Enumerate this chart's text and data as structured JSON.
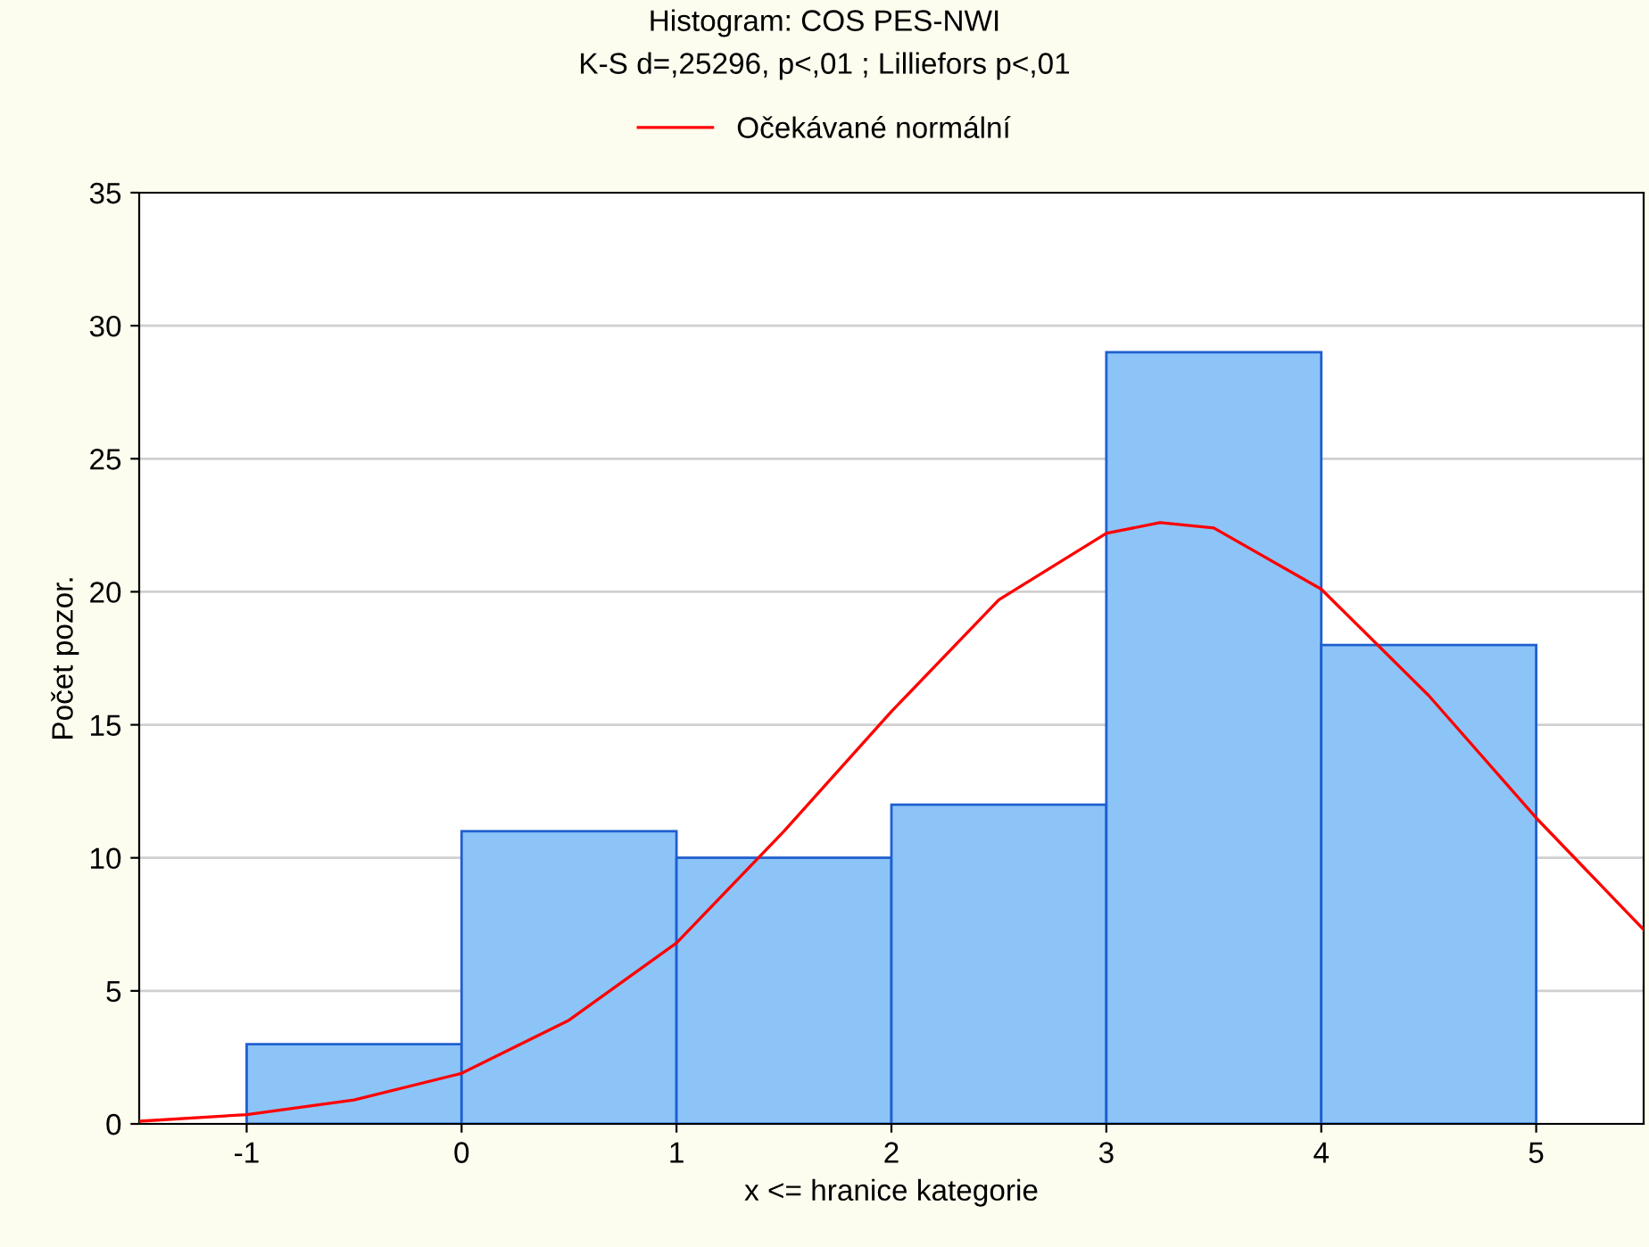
{
  "chart_data": {
    "type": "histogram",
    "title": "Histogram: COS PES-NWI",
    "subtitle": "K-S d=,25296, p<,01 ; Lilliefors p<,01",
    "xlabel": "x <= hranice kategorie",
    "ylabel": "Počet pozor.",
    "bins": [
      -1,
      0,
      1,
      2,
      3,
      4,
      5
    ],
    "values": [
      3,
      11,
      10,
      12,
      29,
      18
    ],
    "color": "#8cc4f8",
    "series": [
      {
        "type": "line",
        "name": "Očekávané normální",
        "color": "#ff0000",
        "x": [
          -1.5,
          -1,
          -0.5,
          0,
          0.5,
          1,
          1.5,
          2,
          2.5,
          3,
          3.25,
          3.5,
          4,
          4.5,
          5,
          5.5
        ],
        "values": [
          0.1,
          0.35,
          0.9,
          1.9,
          3.9,
          6.8,
          11,
          15.5,
          19.7,
          22.2,
          22.6,
          22.4,
          20.1,
          16.1,
          11.5,
          7.3
        ]
      }
    ],
    "xlim": [
      -1.5,
      5.5
    ],
    "xticks": [
      -1,
      0,
      1,
      2,
      3,
      4,
      5
    ],
    "ylim": [
      0,
      35
    ],
    "yticks": [
      0,
      5,
      10,
      15,
      20,
      25,
      30,
      35
    ],
    "grid": "y",
    "legend": "top"
  }
}
